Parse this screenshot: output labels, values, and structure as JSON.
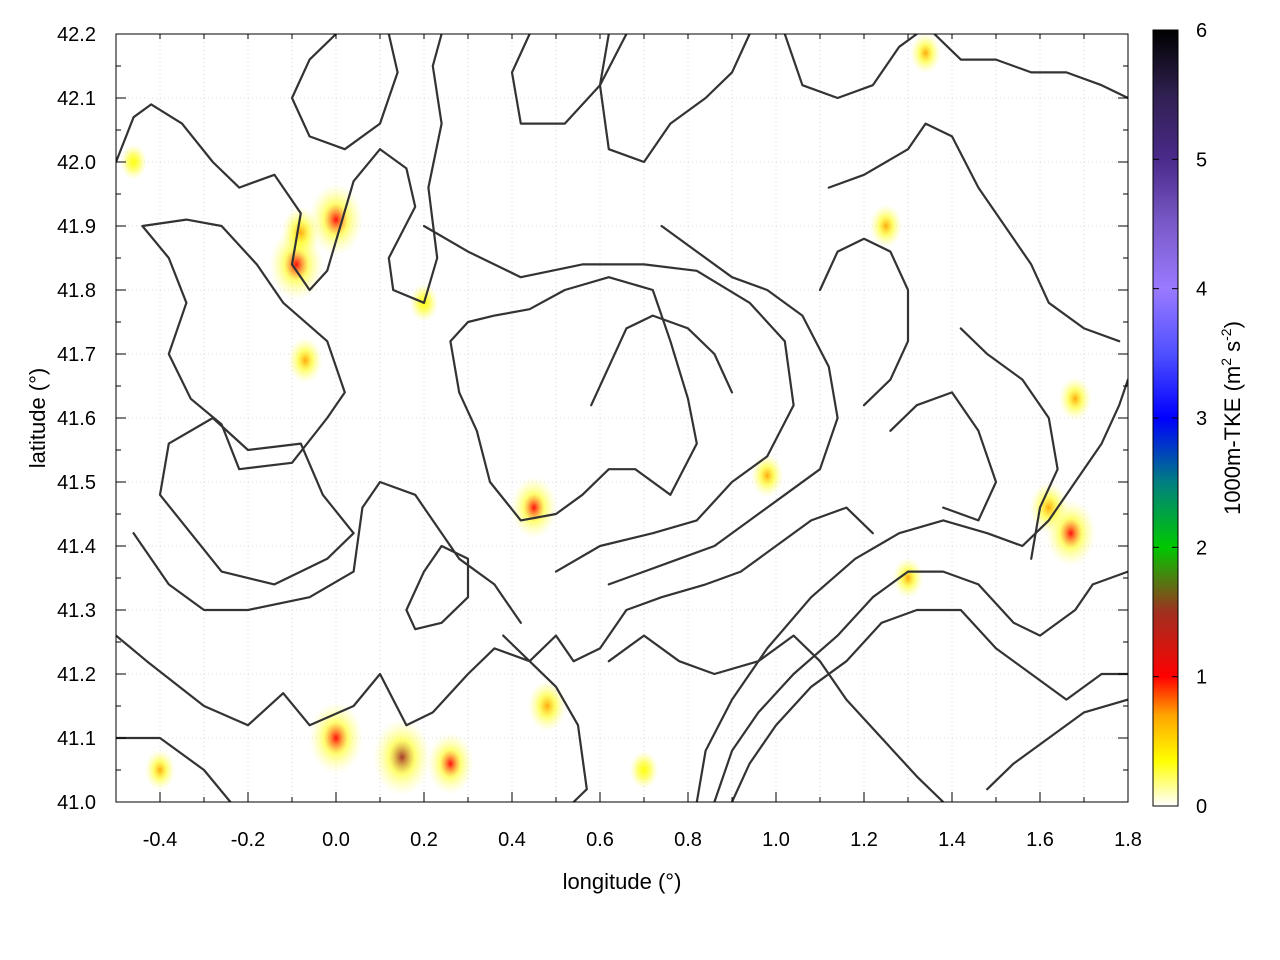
{
  "chart_data": {
    "type": "heatmap",
    "title": "",
    "xlabel": "longitude (°)",
    "ylabel": "latitude (°)",
    "xlim": [
      -0.5,
      1.8
    ],
    "ylim": [
      41.0,
      42.2
    ],
    "x_ticks": [
      -0.4,
      -0.2,
      0.0,
      0.2,
      0.4,
      0.6,
      0.8,
      1.0,
      1.2,
      1.4,
      1.6,
      1.8
    ],
    "x_tick_labels": [
      "-0.4",
      "-0.2",
      "0.0",
      "0.2",
      "0.4",
      "0.6",
      "0.8",
      "1.0",
      "1.2",
      "1.4",
      "1.6",
      "1.8"
    ],
    "y_ticks": [
      41.0,
      41.1,
      41.2,
      41.3,
      41.4,
      41.5,
      41.6,
      41.7,
      41.8,
      41.9,
      42.0,
      42.1,
      42.2
    ],
    "y_tick_labels": [
      "41.0",
      "41.1",
      "41.2",
      "41.3",
      "41.4",
      "41.5",
      "41.6",
      "41.7",
      "41.8",
      "41.9",
      "42.0",
      "42.1",
      "42.2"
    ],
    "grid": true,
    "colorbar": {
      "label": "1000m-TKE (m² s⁻²)",
      "label_main": "1000m-TKE (m",
      "label_sup1": "2",
      "label_mid": " s",
      "label_sup2": "-2",
      "label_end": ")",
      "range": [
        0,
        6
      ],
      "ticks": [
        0,
        1,
        2,
        3,
        4,
        5,
        6
      ],
      "tick_labels": [
        "0",
        "1",
        "2",
        "3",
        "4",
        "5",
        "6"
      ],
      "stops": [
        {
          "value": 0.0,
          "color": "#ffffff"
        },
        {
          "value": 0.35,
          "color": "#ffff00"
        },
        {
          "value": 0.7,
          "color": "#ffa500"
        },
        {
          "value": 1.0,
          "color": "#ff0000"
        },
        {
          "value": 1.5,
          "color": "#a03020"
        },
        {
          "value": 2.0,
          "color": "#00c800"
        },
        {
          "value": 2.5,
          "color": "#008080"
        },
        {
          "value": 3.0,
          "color": "#0000ff"
        },
        {
          "value": 3.5,
          "color": "#5050ff"
        },
        {
          "value": 4.0,
          "color": "#9a7aff"
        },
        {
          "value": 4.5,
          "color": "#7a5ac8"
        },
        {
          "value": 5.0,
          "color": "#4a2a8a"
        },
        {
          "value": 5.5,
          "color": "#302050"
        },
        {
          "value": 6.0,
          "color": "#000000"
        }
      ]
    },
    "tke_hotspots": [
      {
        "lon": 0.0,
        "lat": 41.91,
        "value": 1.0
      },
      {
        "lon": -0.09,
        "lat": 41.84,
        "value": 1.0
      },
      {
        "lon": -0.08,
        "lat": 41.89,
        "value": 0.6
      },
      {
        "lon": -0.07,
        "lat": 41.69,
        "value": 0.5
      },
      {
        "lon": 0.45,
        "lat": 41.46,
        "value": 0.8
      },
      {
        "lon": 1.67,
        "lat": 41.42,
        "value": 0.9
      },
      {
        "lon": 1.62,
        "lat": 41.46,
        "value": 0.6
      },
      {
        "lon": 1.68,
        "lat": 41.63,
        "value": 0.45
      },
      {
        "lon": 1.25,
        "lat": 41.9,
        "value": 0.45
      },
      {
        "lon": 0.0,
        "lat": 41.1,
        "value": 1.0
      },
      {
        "lon": 0.15,
        "lat": 41.07,
        "value": 1.1
      },
      {
        "lon": 0.26,
        "lat": 41.06,
        "value": 0.8
      },
      {
        "lon": 0.48,
        "lat": 41.15,
        "value": 0.6
      },
      {
        "lon": -0.4,
        "lat": 41.05,
        "value": 0.4
      },
      {
        "lon": 1.3,
        "lat": 41.35,
        "value": 0.4
      },
      {
        "lon": 0.98,
        "lat": 41.51,
        "value": 0.45
      },
      {
        "lon": 0.7,
        "lat": 41.05,
        "value": 0.35
      },
      {
        "lon": 1.34,
        "lat": 42.17,
        "value": 0.4
      },
      {
        "lon": -0.46,
        "lat": 42.0,
        "value": 0.3
      },
      {
        "lon": 0.2,
        "lat": 41.78,
        "value": 0.35
      }
    ],
    "contours": [
      [
        [
          -0.5,
          42.0
        ],
        [
          -0.46,
          42.07
        ],
        [
          -0.42,
          42.09
        ],
        [
          -0.35,
          42.06
        ],
        [
          -0.28,
          42.0
        ],
        [
          -0.22,
          41.96
        ],
        [
          -0.14,
          41.98
        ],
        [
          -0.08,
          41.92
        ],
        [
          -0.1,
          41.84
        ],
        [
          -0.06,
          41.8
        ],
        [
          -0.02,
          41.83
        ],
        [
          0.04,
          41.97
        ],
        [
          0.1,
          42.02
        ],
        [
          0.16,
          41.99
        ],
        [
          0.18,
          41.93
        ],
        [
          0.12,
          41.85
        ],
        [
          0.13,
          41.8
        ],
        [
          0.2,
          41.78
        ],
        [
          0.23,
          41.85
        ],
        [
          0.21,
          41.96
        ],
        [
          0.24,
          42.06
        ],
        [
          0.22,
          42.15
        ],
        [
          0.24,
          42.2
        ]
      ],
      [
        [
          -0.44,
          41.9
        ],
        [
          -0.38,
          41.85
        ],
        [
          -0.34,
          41.78
        ],
        [
          -0.38,
          41.7
        ],
        [
          -0.33,
          41.63
        ],
        [
          -0.26,
          41.59
        ],
        [
          -0.22,
          41.52
        ],
        [
          -0.1,
          41.53
        ],
        [
          -0.02,
          41.6
        ],
        [
          0.02,
          41.64
        ],
        [
          -0.02,
          41.72
        ],
        [
          -0.12,
          41.78
        ],
        [
          -0.18,
          41.84
        ],
        [
          -0.26,
          41.9
        ],
        [
          -0.34,
          41.91
        ],
        [
          -0.44,
          41.9
        ]
      ],
      [
        [
          -0.5,
          41.26
        ],
        [
          -0.43,
          41.22
        ],
        [
          -0.3,
          41.15
        ],
        [
          -0.2,
          41.12
        ],
        [
          -0.12,
          41.17
        ],
        [
          -0.06,
          41.12
        ],
        [
          0.04,
          41.15
        ],
        [
          0.1,
          41.2
        ],
        [
          0.16,
          41.12
        ],
        [
          0.22,
          41.14
        ],
        [
          0.3,
          41.2
        ],
        [
          0.36,
          41.24
        ],
        [
          0.44,
          41.22
        ],
        [
          0.5,
          41.18
        ],
        [
          0.55,
          41.12
        ],
        [
          0.57,
          41.02
        ],
        [
          0.54,
          41.0
        ]
      ],
      [
        [
          -0.5,
          41.1
        ],
        [
          -0.4,
          41.1
        ],
        [
          -0.3,
          41.05
        ],
        [
          -0.24,
          41.0
        ]
      ],
      [
        [
          -0.46,
          41.42
        ],
        [
          -0.38,
          41.34
        ],
        [
          -0.3,
          41.3
        ],
        [
          -0.2,
          41.3
        ],
        [
          -0.06,
          41.32
        ],
        [
          0.04,
          41.36
        ],
        [
          0.06,
          41.46
        ],
        [
          0.1,
          41.5
        ],
        [
          0.18,
          41.48
        ],
        [
          0.28,
          41.38
        ],
        [
          0.36,
          41.34
        ],
        [
          0.42,
          41.28
        ]
      ],
      [
        [
          -0.4,
          41.48
        ],
        [
          -0.33,
          41.42
        ],
        [
          -0.26,
          41.36
        ],
        [
          -0.14,
          41.34
        ],
        [
          -0.02,
          41.38
        ],
        [
          0.04,
          41.42
        ],
        [
          -0.03,
          41.48
        ],
        [
          -0.08,
          41.56
        ],
        [
          -0.2,
          41.55
        ],
        [
          -0.28,
          41.6
        ],
        [
          -0.38,
          41.56
        ],
        [
          -0.4,
          41.48
        ]
      ],
      [
        [
          0.26,
          41.72
        ],
        [
          0.28,
          41.64
        ],
        [
          0.32,
          41.58
        ],
        [
          0.35,
          41.5
        ],
        [
          0.42,
          41.44
        ],
        [
          0.5,
          41.45
        ],
        [
          0.56,
          41.48
        ],
        [
          0.62,
          41.52
        ],
        [
          0.68,
          41.52
        ],
        [
          0.76,
          41.48
        ],
        [
          0.82,
          41.56
        ],
        [
          0.8,
          41.63
        ],
        [
          0.76,
          41.72
        ],
        [
          0.72,
          41.8
        ],
        [
          0.62,
          41.82
        ],
        [
          0.52,
          41.8
        ],
        [
          0.44,
          41.77
        ],
        [
          0.36,
          41.76
        ],
        [
          0.3,
          41.75
        ],
        [
          0.26,
          41.72
        ]
      ],
      [
        [
          0.2,
          41.9
        ],
        [
          0.3,
          41.86
        ],
        [
          0.42,
          41.82
        ],
        [
          0.56,
          41.84
        ],
        [
          0.7,
          41.84
        ],
        [
          0.82,
          41.83
        ],
        [
          0.94,
          41.78
        ],
        [
          1.02,
          41.72
        ],
        [
          1.04,
          41.62
        ],
        [
          0.98,
          41.54
        ],
        [
          0.9,
          41.5
        ],
        [
          0.82,
          41.44
        ],
        [
          0.72,
          41.42
        ],
        [
          0.6,
          41.4
        ],
        [
          0.5,
          41.36
        ]
      ],
      [
        [
          0.44,
          42.2
        ],
        [
          0.4,
          42.14
        ],
        [
          0.42,
          42.06
        ],
        [
          0.52,
          42.06
        ],
        [
          0.6,
          42.12
        ],
        [
          0.66,
          42.2
        ]
      ],
      [
        [
          0.62,
          42.2
        ],
        [
          0.6,
          42.12
        ],
        [
          0.62,
          42.02
        ],
        [
          0.7,
          42.0
        ],
        [
          0.76,
          42.06
        ],
        [
          0.84,
          42.1
        ],
        [
          0.9,
          42.14
        ],
        [
          0.94,
          42.2
        ]
      ],
      [
        [
          1.02,
          42.2
        ],
        [
          1.06,
          42.12
        ],
        [
          1.14,
          42.1
        ],
        [
          1.22,
          42.12
        ],
        [
          1.28,
          42.18
        ],
        [
          1.32,
          42.2
        ]
      ],
      [
        [
          1.12,
          41.96
        ],
        [
          1.2,
          41.98
        ],
        [
          1.3,
          42.02
        ],
        [
          1.34,
          42.06
        ],
        [
          1.4,
          42.04
        ],
        [
          1.46,
          41.96
        ],
        [
          1.52,
          41.9
        ],
        [
          1.58,
          41.84
        ],
        [
          1.62,
          41.78
        ],
        [
          1.7,
          41.74
        ],
        [
          1.78,
          41.72
        ]
      ],
      [
        [
          1.36,
          42.2
        ],
        [
          1.42,
          42.16
        ],
        [
          1.5,
          42.16
        ],
        [
          1.58,
          42.14
        ],
        [
          1.66,
          42.14
        ],
        [
          1.74,
          42.12
        ],
        [
          1.8,
          42.1
        ]
      ],
      [
        [
          0.74,
          41.9
        ],
        [
          0.82,
          41.86
        ],
        [
          0.9,
          41.82
        ],
        [
          0.98,
          41.8
        ],
        [
          1.06,
          41.76
        ],
        [
          1.12,
          41.68
        ],
        [
          1.14,
          41.6
        ],
        [
          1.1,
          41.52
        ],
        [
          1.02,
          41.48
        ],
        [
          0.94,
          41.44
        ],
        [
          0.86,
          41.4
        ],
        [
          0.78,
          41.38
        ],
        [
          0.7,
          41.36
        ],
        [
          0.62,
          41.34
        ]
      ],
      [
        [
          0.38,
          41.26
        ],
        [
          0.44,
          41.22
        ],
        [
          0.5,
          41.26
        ],
        [
          0.54,
          41.22
        ],
        [
          0.6,
          41.24
        ],
        [
          0.66,
          41.3
        ],
        [
          0.74,
          41.32
        ],
        [
          0.84,
          41.34
        ],
        [
          0.92,
          41.36
        ],
        [
          1.0,
          41.4
        ],
        [
          1.08,
          41.44
        ],
        [
          1.16,
          41.46
        ],
        [
          1.22,
          41.42
        ]
      ],
      [
        [
          0.62,
          41.22
        ],
        [
          0.7,
          41.26
        ],
        [
          0.78,
          41.22
        ],
        [
          0.86,
          41.2
        ],
        [
          0.96,
          41.22
        ],
        [
          1.04,
          41.26
        ],
        [
          1.1,
          41.22
        ],
        [
          1.16,
          41.16
        ],
        [
          1.24,
          41.1
        ],
        [
          1.32,
          41.04
        ],
        [
          1.38,
          41.0
        ]
      ],
      [
        [
          0.9,
          41.0
        ],
        [
          0.94,
          41.06
        ],
        [
          1.0,
          41.12
        ],
        [
          1.08,
          41.18
        ],
        [
          1.16,
          41.22
        ],
        [
          1.24,
          41.28
        ],
        [
          1.32,
          41.3
        ],
        [
          1.42,
          41.3
        ],
        [
          1.5,
          41.24
        ],
        [
          1.58,
          41.2
        ],
        [
          1.66,
          41.16
        ],
        [
          1.74,
          41.2
        ],
        [
          1.8,
          41.2
        ]
      ],
      [
        [
          0.86,
          41.0
        ],
        [
          0.9,
          41.08
        ],
        [
          0.96,
          41.14
        ],
        [
          1.04,
          41.2
        ],
        [
          1.14,
          41.26
        ],
        [
          1.22,
          41.32
        ],
        [
          1.3,
          41.36
        ],
        [
          1.38,
          41.36
        ],
        [
          1.46,
          41.34
        ],
        [
          1.54,
          41.28
        ],
        [
          1.6,
          41.26
        ],
        [
          1.68,
          41.3
        ],
        [
          1.72,
          41.34
        ],
        [
          1.8,
          41.36
        ]
      ],
      [
        [
          0.82,
          41.0
        ],
        [
          0.84,
          41.08
        ],
        [
          0.9,
          41.16
        ],
        [
          0.98,
          41.24
        ],
        [
          1.08,
          41.32
        ],
        [
          1.18,
          41.38
        ],
        [
          1.28,
          41.42
        ],
        [
          1.38,
          41.44
        ],
        [
          1.48,
          41.42
        ],
        [
          1.56,
          41.4
        ],
        [
          1.62,
          41.44
        ],
        [
          1.68,
          41.5
        ],
        [
          1.74,
          41.56
        ],
        [
          1.78,
          41.62
        ],
        [
          1.8,
          41.66
        ]
      ],
      [
        [
          1.42,
          41.74
        ],
        [
          1.48,
          41.7
        ],
        [
          1.56,
          41.66
        ],
        [
          1.62,
          41.6
        ],
        [
          1.64,
          41.52
        ],
        [
          1.6,
          41.46
        ],
        [
          1.58,
          41.38
        ]
      ],
      [
        [
          1.26,
          41.58
        ],
        [
          1.32,
          41.62
        ],
        [
          1.4,
          41.64
        ],
        [
          1.46,
          41.58
        ],
        [
          1.5,
          41.5
        ],
        [
          1.46,
          41.44
        ],
        [
          1.38,
          41.46
        ]
      ],
      [
        [
          0.0,
          42.2
        ],
        [
          -0.06,
          42.16
        ],
        [
          -0.1,
          42.1
        ],
        [
          -0.06,
          42.04
        ],
        [
          0.02,
          42.02
        ],
        [
          0.1,
          42.06
        ],
        [
          0.14,
          42.14
        ],
        [
          0.12,
          42.2
        ]
      ],
      [
        [
          1.2,
          41.62
        ],
        [
          1.26,
          41.66
        ],
        [
          1.3,
          41.72
        ],
        [
          1.3,
          41.8
        ],
        [
          1.26,
          41.86
        ],
        [
          1.2,
          41.88
        ],
        [
          1.14,
          41.86
        ],
        [
          1.1,
          41.8
        ]
      ],
      [
        [
          0.16,
          41.3
        ],
        [
          0.2,
          41.36
        ],
        [
          0.24,
          41.4
        ],
        [
          0.3,
          41.38
        ],
        [
          0.3,
          41.32
        ],
        [
          0.24,
          41.28
        ],
        [
          0.18,
          41.27
        ],
        [
          0.16,
          41.3
        ]
      ],
      [
        [
          1.48,
          41.02
        ],
        [
          1.54,
          41.06
        ],
        [
          1.62,
          41.1
        ],
        [
          1.7,
          41.14
        ],
        [
          1.8,
          41.16
        ]
      ],
      [
        [
          0.58,
          41.62
        ],
        [
          0.62,
          41.68
        ],
        [
          0.66,
          41.74
        ],
        [
          0.72,
          41.76
        ],
        [
          0.8,
          41.74
        ],
        [
          0.86,
          41.7
        ],
        [
          0.9,
          41.64
        ]
      ]
    ]
  }
}
